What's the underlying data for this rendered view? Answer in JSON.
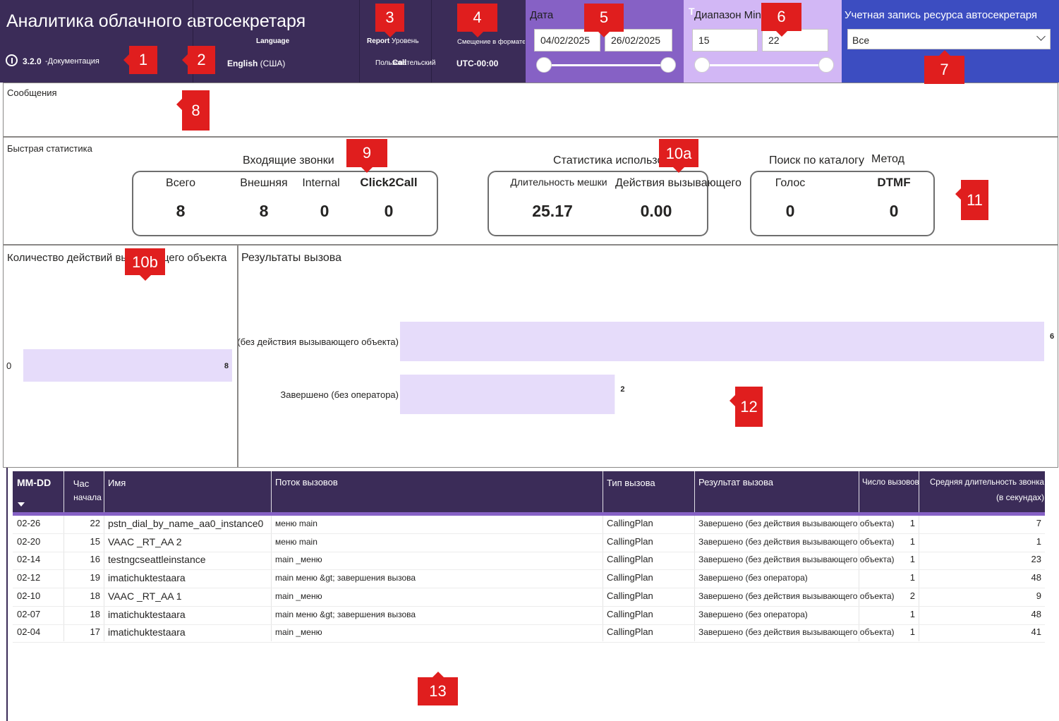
{
  "header": {
    "title": "Аналитика облачного автосекретаря",
    "version": "3.2.0",
    "docs_label": "-Документация",
    "language_label": "Language",
    "language_value_bold": "English",
    "language_value_rest": " (США)",
    "report_label_bold": "Report",
    "report_label_rest": " Уровень",
    "report_value": "Пользовательский",
    "report_value_overlay": "Call",
    "offset_label": "Смещение в формате UTC",
    "offset_value": "UTC-00:00"
  },
  "date_filter": {
    "label": "Дата",
    "start": "04/02/2025",
    "end": "26/02/2025"
  },
  "duration_filter": {
    "label": "Диапазон Min",
    "min": "15",
    "max": "22"
  },
  "account_filter": {
    "label": "Учетная запись ресурса автосекретаря",
    "selected": "Все"
  },
  "messages": {
    "title": "Сообщения"
  },
  "quick_stats": {
    "title": "Быстрая статистика",
    "incoming": {
      "title": "Входящие звонки",
      "total_label": "Всего",
      "total": "8",
      "external_label": "Внешняя",
      "external": "8",
      "internal_label": "Internal",
      "internal": "0",
      "click2call_label": "Click2Call",
      "click2call": "0"
    },
    "usage": {
      "title": "Статистика использования",
      "duration_label": "Длительность мешки",
      "duration": "25.17",
      "actions_label": "Действия вызывающего",
      "actions": "0.00"
    },
    "directory": {
      "title": "Поиск по каталогу",
      "method_label": "Метод",
      "voice_label": "Голос",
      "voice": "0",
      "dtmf_label": "DTMF",
      "dtmf": "0"
    }
  },
  "chart_data": [
    {
      "type": "bar",
      "orientation": "horizontal",
      "title": "Количество действий вызывающего объекта",
      "categories": [
        "0"
      ],
      "values": [
        8
      ],
      "color": "#e6dcfa"
    },
    {
      "type": "bar",
      "orientation": "horizontal",
      "title": "Результаты вызова",
      "categories": [
        "Завершено (без действия вызывающего объекта)",
        "Завершено (без оператора)"
      ],
      "values": [
        6,
        2
      ],
      "color": "#e6dcfa"
    }
  ],
  "table": {
    "headers": {
      "date": "MM-DD",
      "hour1": "Час",
      "hour2": "начала",
      "name": "Имя",
      "flow": "Поток вызовов",
      "type": "Тип вызова",
      "result": "Результат вызова",
      "count": "Число вызовов",
      "avg1": "Средняя длительность звонка",
      "avg2": "(в секундах)"
    },
    "rows": [
      {
        "date": "02-26",
        "hour": "22",
        "name": "pstn_dial_by_name_aa0_instance0",
        "flow": "меню main",
        "type": "CallingPlan",
        "result": "Завершено (без действия вызывающего объекта)",
        "count": "1",
        "avg": "7"
      },
      {
        "date": "02-20",
        "hour": "15",
        "name": "VAAC _RT_AA 2",
        "flow": "меню main",
        "type": "CallingPlan",
        "result": "Завершено (без действия вызывающего объекта)",
        "count": "1",
        "avg": "1"
      },
      {
        "date": "02-14",
        "hour": "16",
        "name": "testngcseattleinstance",
        "flow": "main _меню",
        "type": "CallingPlan",
        "result": "Завершено (без действия вызывающего объекта)",
        "count": "1",
        "avg": "23"
      },
      {
        "date": "02-12",
        "hour": "19",
        "name": "imatichuktestaara",
        "flow": "main меню &gt; завершения вызова",
        "type": "CallingPlan",
        "result": "Завершено (без оператора)",
        "count": "1",
        "avg": "48"
      },
      {
        "date": "02-10",
        "hour": "18",
        "name": "VAAC _RT_AA 1",
        "flow": "main _меню",
        "type": "CallingPlan",
        "result": "Завершено (без действия вызывающего объекта)",
        "count": "2",
        "avg": "9"
      },
      {
        "date": "02-07",
        "hour": "18",
        "name": "imatichuktestaara",
        "flow": "main меню &gt; завершения вызова",
        "type": "CallingPlan",
        "result": "Завершено (без оператора)",
        "count": "1",
        "avg": "48"
      },
      {
        "date": "02-04",
        "hour": "17",
        "name": "imatichuktestaara",
        "flow": "main _меню",
        "type": "CallingPlan",
        "result": "Завершено (без действия вызывающего объекта)",
        "count": "1",
        "avg": "41"
      }
    ]
  },
  "callouts": [
    "1",
    "2",
    "3",
    "4",
    "5",
    "6",
    "7",
    "8",
    "9",
    "10a",
    "10b",
    "11",
    "12",
    "13"
  ]
}
